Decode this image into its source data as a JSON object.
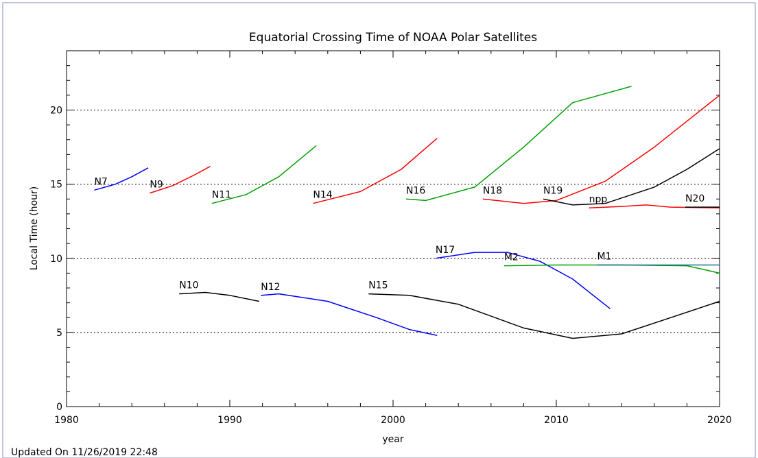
{
  "chart_data": {
    "type": "line",
    "title": "Equatorial Crossing Time of NOAA Polar Satellites",
    "xlabel": "year",
    "ylabel": "Local Time (hour)",
    "footer": "Updated On 11/26/2019 22:48",
    "xlim": [
      1980,
      2020
    ],
    "xticks": [
      1980,
      1990,
      2000,
      2010,
      2020
    ],
    "ylim": [
      0,
      24
    ],
    "yticks": [
      0,
      5,
      10,
      15,
      20
    ],
    "grid": true,
    "series": [
      {
        "name": "N7",
        "color": "#0000ff",
        "x": [
          1981.7,
          1983,
          1984,
          1985
        ],
        "values": [
          14.6,
          15.0,
          15.5,
          16.1
        ]
      },
      {
        "name": "N9",
        "color": "#ff0000",
        "x": [
          1985.1,
          1986.5,
          1987.8,
          1988.8
        ],
        "values": [
          14.4,
          14.9,
          15.6,
          16.2
        ]
      },
      {
        "name": "N11",
        "color": "#00a000",
        "x": [
          1988.9,
          1991,
          1993,
          1995.3
        ],
        "values": [
          13.7,
          14.3,
          15.5,
          17.6
        ]
      },
      {
        "name": "N14",
        "color": "#ff0000",
        "x": [
          1995.1,
          1998,
          2000.5,
          2002.7
        ],
        "values": [
          13.7,
          14.5,
          16.0,
          18.1
        ]
      },
      {
        "name": "N16",
        "color": "#00a000",
        "x": [
          2000.8,
          2002,
          2005,
          2008,
          2011,
          2014.6
        ],
        "values": [
          14.0,
          13.9,
          14.8,
          17.5,
          20.5,
          21.6
        ]
      },
      {
        "name": "N18",
        "color": "#ff0000",
        "x": [
          2005.5,
          2008,
          2010,
          2013,
          2016,
          2020
        ],
        "values": [
          14.0,
          13.7,
          13.9,
          15.2,
          17.5,
          21.0
        ]
      },
      {
        "name": "N19",
        "color": "#000000",
        "x": [
          2009.2,
          2011,
          2013,
          2016,
          2018,
          2020
        ],
        "values": [
          14.0,
          13.6,
          13.7,
          14.8,
          16.0,
          17.4
        ]
      },
      {
        "name": "npp",
        "color": "#ff0000",
        "x": [
          2012,
          2014,
          2015.5,
          2017,
          2020
        ],
        "values": [
          13.4,
          13.5,
          13.6,
          13.45,
          13.4
        ]
      },
      {
        "name": "N20",
        "color": "#000000",
        "x": [
          2017.9,
          2020
        ],
        "values": [
          13.45,
          13.45
        ]
      },
      {
        "name": "N10",
        "color": "#000000",
        "x": [
          1986.9,
          1988.5,
          1990,
          1991.8
        ],
        "values": [
          7.6,
          7.7,
          7.5,
          7.1
        ]
      },
      {
        "name": "N12",
        "color": "#0000ff",
        "x": [
          1991.9,
          1993,
          1996,
          1999,
          2001,
          2002.7
        ],
        "values": [
          7.5,
          7.6,
          7.1,
          6.0,
          5.2,
          4.8
        ]
      },
      {
        "name": "N15",
        "color": "#000000",
        "x": [
          1998.5,
          2001,
          2004,
          2008,
          2011,
          2014,
          2017,
          2020
        ],
        "values": [
          7.6,
          7.5,
          6.9,
          5.3,
          4.6,
          4.9,
          6.0,
          7.1
        ]
      },
      {
        "name": "N17",
        "color": "#0000ff",
        "x": [
          2002.6,
          2005,
          2007,
          2009,
          2011,
          2013.3
        ],
        "values": [
          10.0,
          10.4,
          10.4,
          9.8,
          8.6,
          6.6
        ]
      },
      {
        "name": "M2",
        "color": "#00a000",
        "x": [
          2006.8,
          2010,
          2014,
          2018,
          2020
        ],
        "values": [
          9.5,
          9.55,
          9.55,
          9.5,
          9.0
        ]
      },
      {
        "name": "M1",
        "color": "#1a6f8f",
        "x": [
          2012.5,
          2016,
          2020
        ],
        "values": [
          9.55,
          9.55,
          9.55
        ]
      }
    ]
  }
}
